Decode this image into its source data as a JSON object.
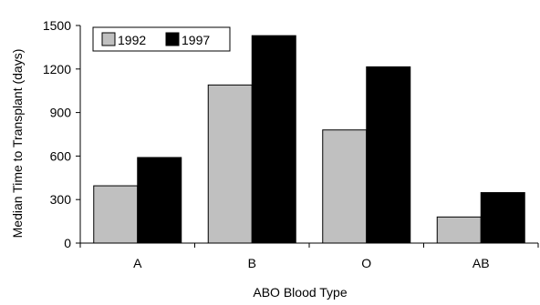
{
  "chart_data": {
    "type": "bar",
    "title": "",
    "xlabel": "ABO Blood Type",
    "ylabel": "Median Time to Transplant (days)",
    "categories": [
      "A",
      "B",
      "O",
      "AB"
    ],
    "series": [
      {
        "name": "1992",
        "values": [
          395,
          1090,
          780,
          180
        ],
        "color": "#c0c0c0"
      },
      {
        "name": "1997",
        "values": [
          590,
          1430,
          1215,
          348
        ],
        "color": "#000000"
      }
    ],
    "ylim": [
      0,
      1500
    ],
    "yticks": [
      0,
      300,
      600,
      900,
      1200,
      1500
    ],
    "grid": false,
    "legend_position": "top-left"
  }
}
